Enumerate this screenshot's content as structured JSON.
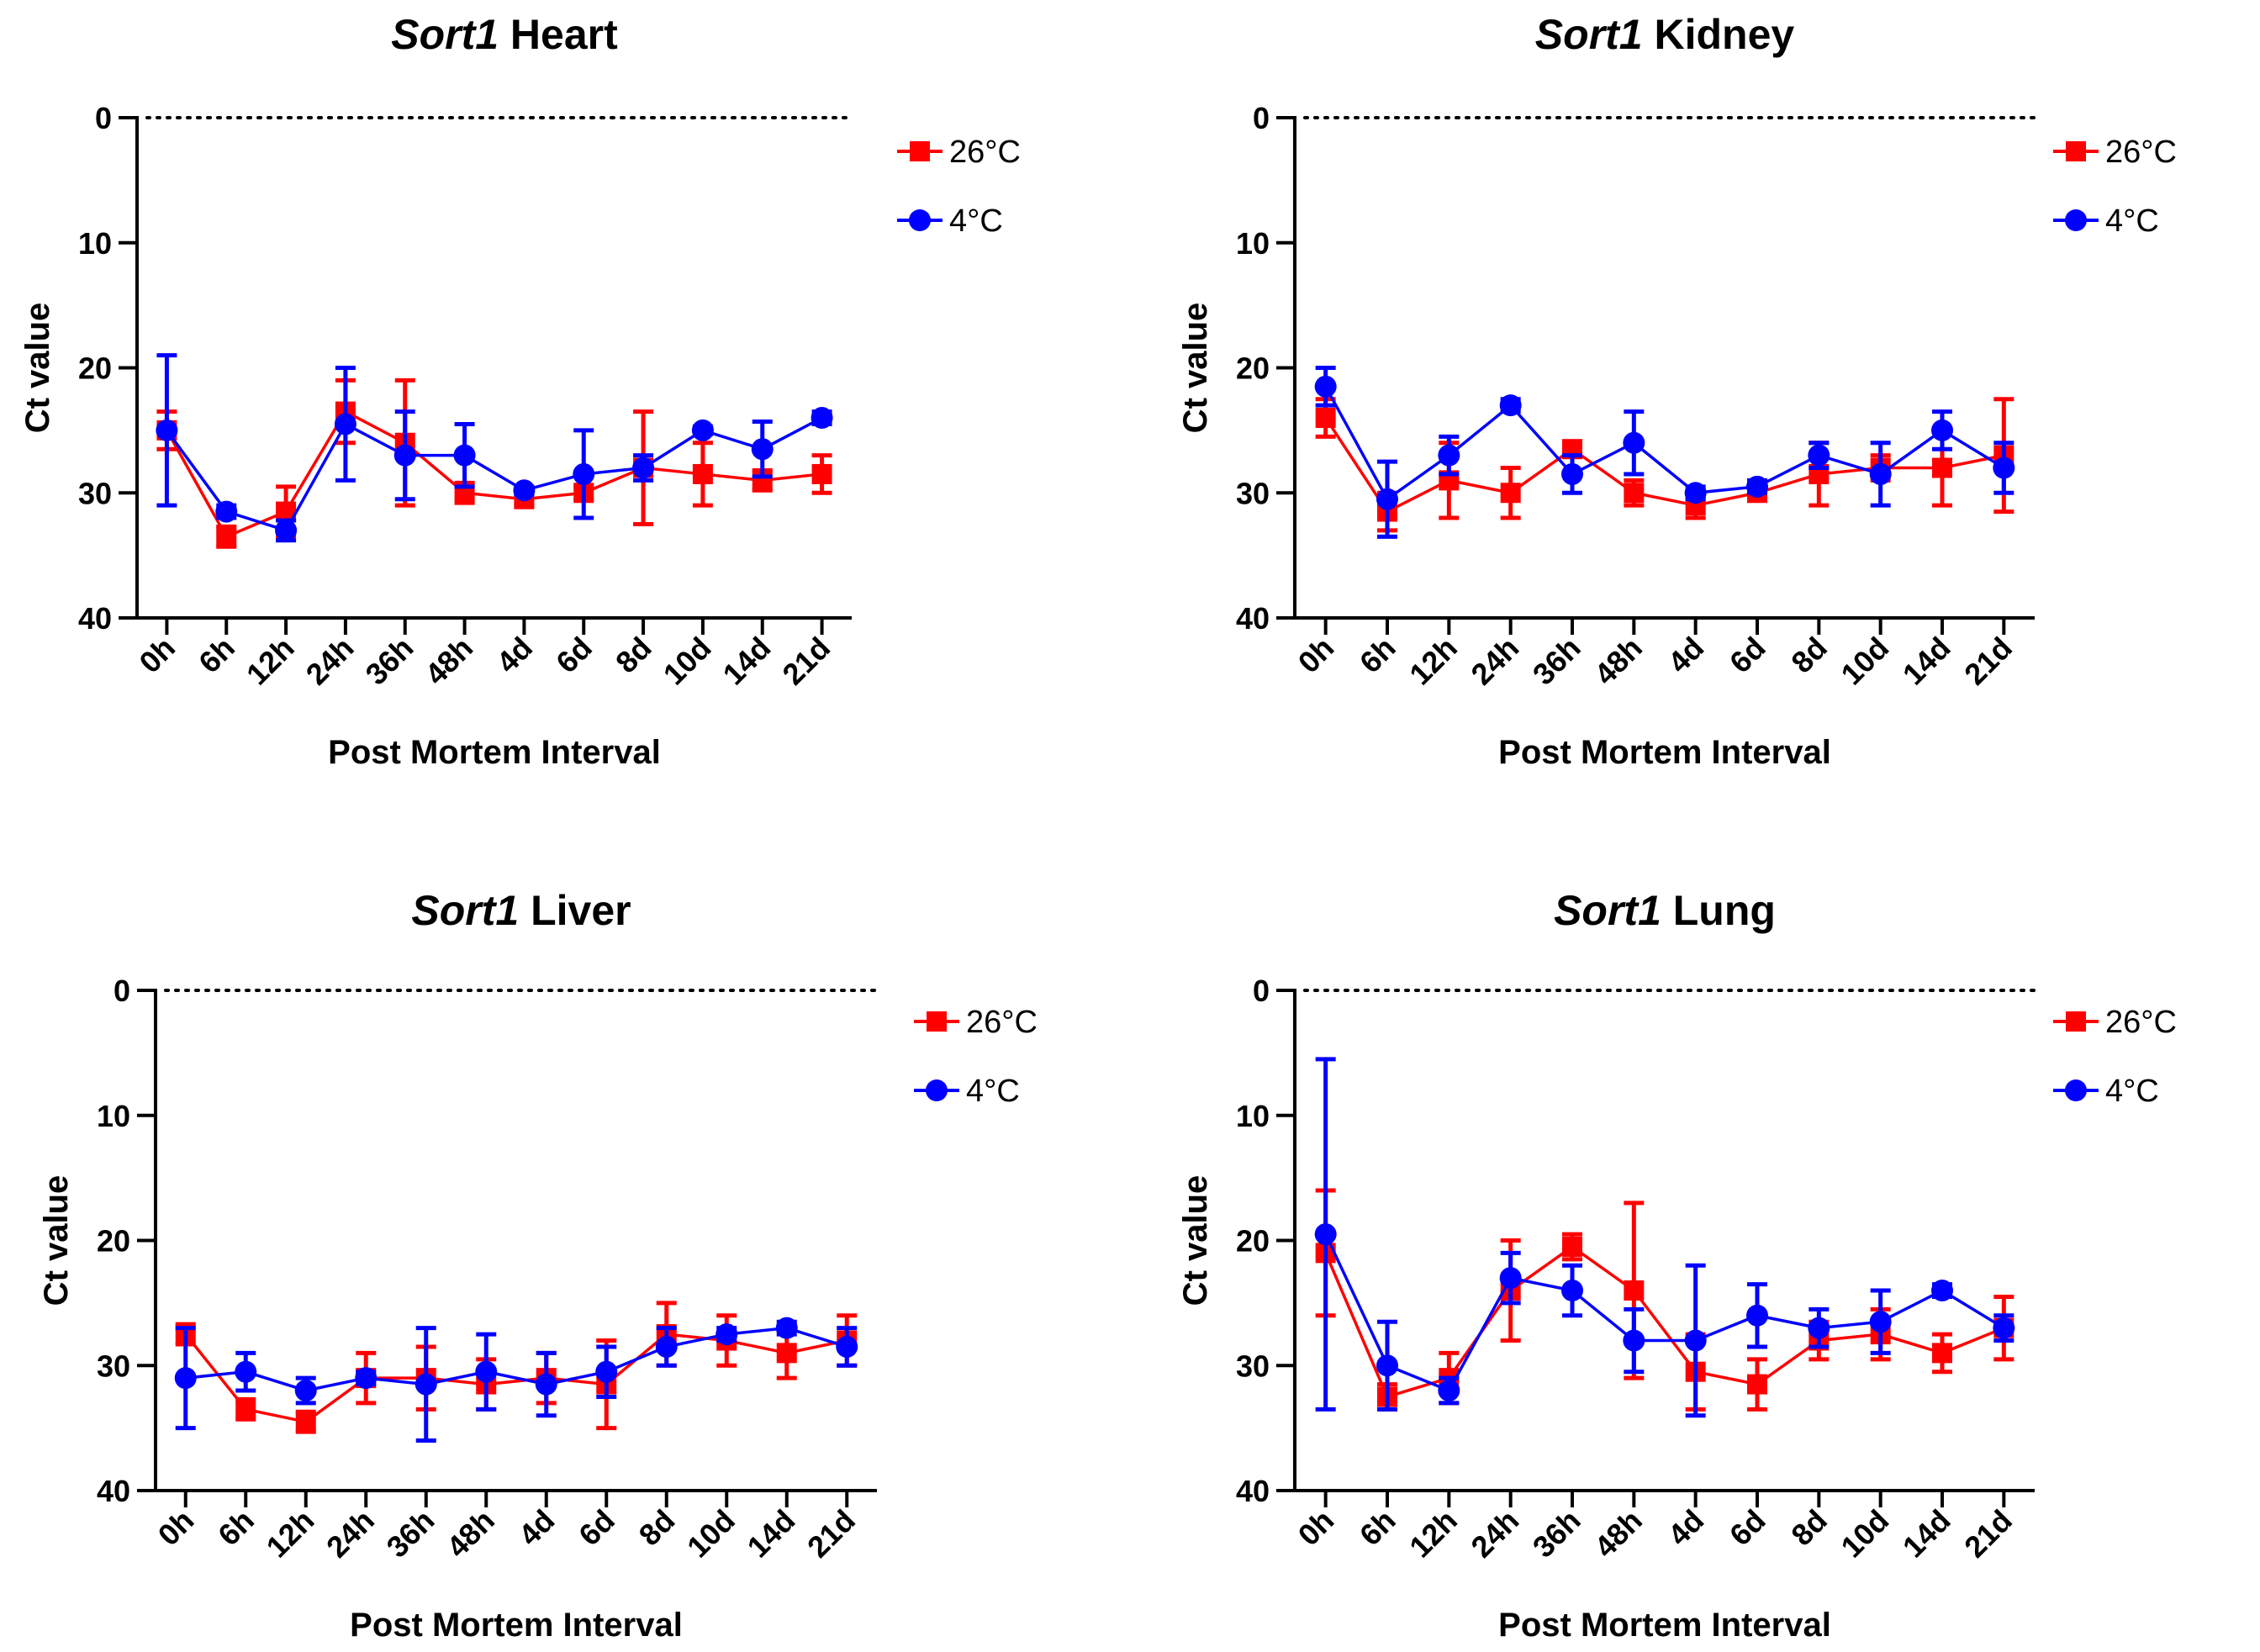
{
  "figure": {
    "background": "#ffffff"
  },
  "series_style": {
    "26C": {
      "color": "#ff0000",
      "marker": "square"
    },
    "4C": {
      "color": "#0000ff",
      "marker": "circle"
    }
  },
  "chart_data": [
    {
      "type": "line",
      "title_gene": "Sort1",
      "title_tissue": " Heart",
      "xlabel": "Post Mortem Interval",
      "ylabel": "Ct  value",
      "categories": [
        "0h",
        "6h",
        "12h",
        "24h",
        "36h",
        "48h",
        "4d",
        "6d",
        "8d",
        "10d",
        "14d",
        "21d"
      ],
      "ylim": [
        0,
        40
      ],
      "y_reversed": true,
      "yticks": [
        0,
        10,
        20,
        30,
        40
      ],
      "ytick_labels": [
        "0",
        "10",
        "20",
        "30",
        "40"
      ],
      "reference_line": 0,
      "legend_position": "top-right",
      "series": [
        {
          "key": "26C",
          "name": "26°C",
          "values": [
            25.0,
            33.5,
            31.5,
            23.5,
            26.0,
            30.0,
            30.5,
            30.0,
            28.0,
            28.5,
            29.0,
            28.5
          ],
          "err": [
            1.5,
            0.8,
            2.0,
            2.5,
            5.0,
            0.8,
            0.5,
            0.5,
            4.5,
            2.5,
            0.8,
            1.5
          ]
        },
        {
          "key": "4C",
          "name": "4°C",
          "values": [
            25.0,
            31.5,
            33.0,
            24.5,
            27.0,
            27.0,
            29.8,
            28.5,
            28.0,
            25.0,
            26.5,
            24.0
          ],
          "err": [
            6.0,
            0.5,
            0.8,
            4.5,
            3.5,
            2.5,
            0.3,
            3.5,
            1.0,
            0.3,
            2.2,
            0.5
          ]
        }
      ]
    },
    {
      "type": "line",
      "title_gene": "Sort1",
      "title_tissue": " Kidney",
      "xlabel": "Post Mortem Interval",
      "ylabel": "Ct  value",
      "categories": [
        "0h",
        "6h",
        "12h",
        "24h",
        "36h",
        "48h",
        "4d",
        "6d",
        "8d",
        "10d",
        "14d",
        "21d"
      ],
      "ylim": [
        0,
        40
      ],
      "y_reversed": true,
      "yticks": [
        0,
        10,
        20,
        30,
        40
      ],
      "ytick_labels": [
        "0",
        "10",
        "20",
        "30",
        "40"
      ],
      "reference_line": 0,
      "legend_position": "top-right",
      "series": [
        {
          "key": "26C",
          "name": "26°C",
          "values": [
            24.0,
            31.5,
            29.0,
            30.0,
            26.5,
            30.0,
            31.0,
            30.0,
            28.5,
            28.0,
            28.0,
            27.0
          ],
          "err": [
            1.5,
            1.5,
            3.0,
            2.0,
            0.5,
            1.0,
            1.0,
            0.5,
            2.5,
            1.0,
            3.0,
            4.5
          ]
        },
        {
          "key": "4C",
          "name": "4°C",
          "values": [
            21.5,
            30.5,
            27.0,
            23.0,
            28.5,
            26.0,
            30.0,
            29.5,
            27.0,
            28.5,
            25.0,
            28.0
          ],
          "err": [
            1.5,
            3.0,
            1.5,
            0.5,
            1.5,
            2.5,
            0.5,
            0.5,
            1.0,
            2.5,
            1.5,
            2.0
          ]
        }
      ]
    },
    {
      "type": "line",
      "title_gene": "Sort1",
      "title_tissue": " Liver",
      "xlabel": "Post Mortem Interval",
      "ylabel": "Ct  value",
      "categories": [
        "0h",
        "6h",
        "12h",
        "24h",
        "36h",
        "48h",
        "4d",
        "6d",
        "8d",
        "10d",
        "14d",
        "21d"
      ],
      "ylim": [
        0,
        40
      ],
      "y_reversed": true,
      "yticks": [
        0,
        10,
        20,
        30,
        40
      ],
      "ytick_labels": [
        "0",
        "10",
        "20",
        "30",
        "40"
      ],
      "reference_line": 0,
      "legend_position": "top-right",
      "series": [
        {
          "key": "26C",
          "name": "26°C",
          "values": [
            27.5,
            33.5,
            34.5,
            31.0,
            31.0,
            31.5,
            31.0,
            31.5,
            27.5,
            28.0,
            29.0,
            28.0
          ],
          "err": [
            0.8,
            0.8,
            0.8,
            2.0,
            2.5,
            2.0,
            2.0,
            3.5,
            2.5,
            2.0,
            2.0,
            2.0
          ]
        },
        {
          "key": "4C",
          "name": "4°C",
          "values": [
            31.0,
            30.5,
            32.0,
            31.0,
            31.5,
            30.5,
            31.5,
            30.5,
            28.5,
            27.5,
            27.0,
            28.5
          ],
          "err": [
            4.0,
            1.5,
            1.0,
            0.5,
            4.5,
            3.0,
            2.5,
            2.0,
            1.5,
            0.5,
            0.5,
            1.5
          ]
        }
      ]
    },
    {
      "type": "line",
      "title_gene": "Sort1",
      "title_tissue": " Lung",
      "xlabel": "Post Mortem Interval",
      "ylabel": "Ct  value",
      "categories": [
        "0h",
        "6h",
        "12h",
        "24h",
        "36h",
        "48h",
        "4d",
        "6d",
        "8d",
        "10d",
        "14d",
        "21d"
      ],
      "ylim": [
        0,
        40
      ],
      "y_reversed": true,
      "yticks": [
        0,
        10,
        20,
        30,
        40
      ],
      "ytick_labels": [
        "0",
        "10",
        "20",
        "30",
        "40"
      ],
      "reference_line": 0,
      "legend_position": "top-right",
      "series": [
        {
          "key": "26C",
          "name": "26°C",
          "values": [
            21.0,
            32.5,
            31.0,
            24.0,
            20.5,
            24.0,
            30.5,
            31.5,
            28.0,
            27.5,
            29.0,
            27.0
          ],
          "err": [
            5.0,
            1.0,
            2.0,
            4.0,
            1.0,
            7.0,
            3.0,
            2.0,
            1.5,
            2.0,
            1.5,
            2.5
          ]
        },
        {
          "key": "4C",
          "name": "4°C",
          "values": [
            19.5,
            30.0,
            32.0,
            23.0,
            24.0,
            28.0,
            28.0,
            26.0,
            27.0,
            26.5,
            24.0,
            27.0
          ],
          "err": [
            14.0,
            3.5,
            1.0,
            2.0,
            2.0,
            2.5,
            6.0,
            2.5,
            1.5,
            2.5,
            0.5,
            1.0
          ]
        }
      ]
    }
  ]
}
